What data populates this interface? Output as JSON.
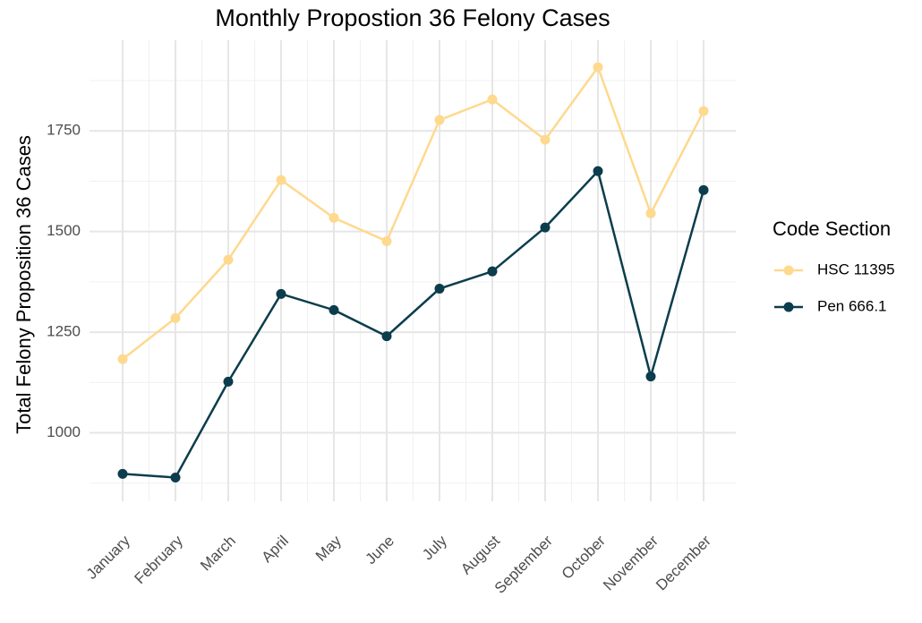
{
  "chart_data": {
    "type": "line",
    "title": "Monthly Propostion 36 Felony Cases",
    "y_label": "Total Felony Proposition 36 Cases",
    "legend_title": "Code Section",
    "legend_position": "right",
    "grid": true,
    "categories": [
      "January",
      "February",
      "March",
      "April",
      "May",
      "June",
      "July",
      "August",
      "September",
      "October",
      "November",
      "December"
    ],
    "series": [
      {
        "name": "HSC 11395",
        "color": "#fed98e",
        "values": [
          1183,
          1285,
          1430,
          1628,
          1534,
          1476,
          1777,
          1828,
          1728,
          1908,
          1545,
          1799
        ]
      },
      {
        "name": "Pen 666.1",
        "color": "#0b3d4c",
        "values": [
          898,
          889,
          1127,
          1345,
          1305,
          1240,
          1358,
          1401,
          1510,
          1650,
          1140,
          1603
        ]
      }
    ],
    "ylim": [
      830,
      1975
    ],
    "yticks": [
      1000,
      1250,
      1500,
      1750
    ]
  }
}
